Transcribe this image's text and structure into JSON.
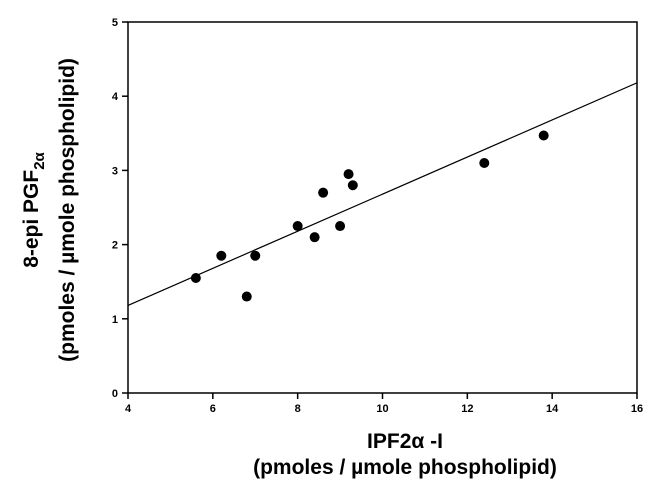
{
  "chart_data": {
    "type": "scatter",
    "xlabel_line1": "IPF2α -I",
    "xlabel_line2": "(pmoles / µmole phospholipid)",
    "ylabel_line1_main": "8-epi PGF",
    "ylabel_line1_sub": "2α",
    "ylabel_line2": "(pmoles / µmole phospholipid)",
    "xlim": [
      4,
      16
    ],
    "ylim": [
      0,
      5
    ],
    "x_ticks": [
      4,
      6,
      8,
      10,
      12,
      14,
      16
    ],
    "y_ticks": [
      0,
      1,
      2,
      3,
      4,
      5
    ],
    "grid": false,
    "points": [
      {
        "x": 5.6,
        "y": 1.55
      },
      {
        "x": 6.2,
        "y": 1.85
      },
      {
        "x": 6.8,
        "y": 1.3
      },
      {
        "x": 7.0,
        "y": 1.85
      },
      {
        "x": 8.0,
        "y": 2.25
      },
      {
        "x": 8.4,
        "y": 2.1
      },
      {
        "x": 8.6,
        "y": 2.7
      },
      {
        "x": 9.0,
        "y": 2.25
      },
      {
        "x": 9.2,
        "y": 2.95
      },
      {
        "x": 9.3,
        "y": 2.8
      },
      {
        "x": 12.4,
        "y": 3.1
      },
      {
        "x": 13.8,
        "y": 3.47
      }
    ],
    "fit_line": {
      "x": [
        4,
        16
      ],
      "y": [
        1.18,
        4.18
      ]
    },
    "colors": {
      "marker": "#000000",
      "line": "#000000",
      "axis": "#000000"
    }
  }
}
